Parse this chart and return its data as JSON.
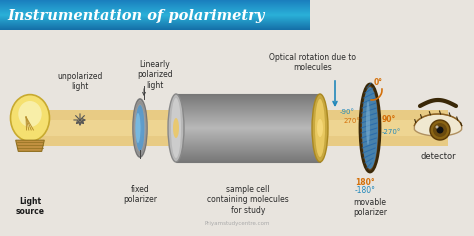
{
  "title": "Instrumentation of polarimetry",
  "title_bg_top": "#1a7fbe",
  "title_bg_mid": "#2ab0d8",
  "title_bg_bot": "#1570a8",
  "title_text_color": "#ffffff",
  "bg_color": "#e8e4de",
  "beam_color": "#e8c97a",
  "beam_light_color": "#f5dfa0",
  "watermark": "Priyamstudycentre.com",
  "labels": {
    "light_source": "Light\nsource",
    "unpolarized": "unpolarized\nlight",
    "linearly": "Linearly\npolarized\nlight",
    "fixed_pol": "fixed\npolarizer",
    "sample_cell": "sample cell\ncontaining molecules\nfor study",
    "optical_rotation": "Optical rotation due to\nmolecules",
    "movable_pol": "movable\npolarizer",
    "detector": "detector",
    "deg_0": "0°",
    "deg_90": "90°",
    "deg_180": "180°",
    "deg_270": "270°",
    "deg_neg90": "-90°",
    "deg_neg180": "-180°",
    "deg_neg270": "-270°"
  },
  "orange_color": "#d4700a",
  "blue_color": "#2288bb",
  "text_color": "#2a2a2a",
  "bulb_yellow": "#f0d060",
  "bulb_light": "#f8e898",
  "bulb_base": "#b89040"
}
